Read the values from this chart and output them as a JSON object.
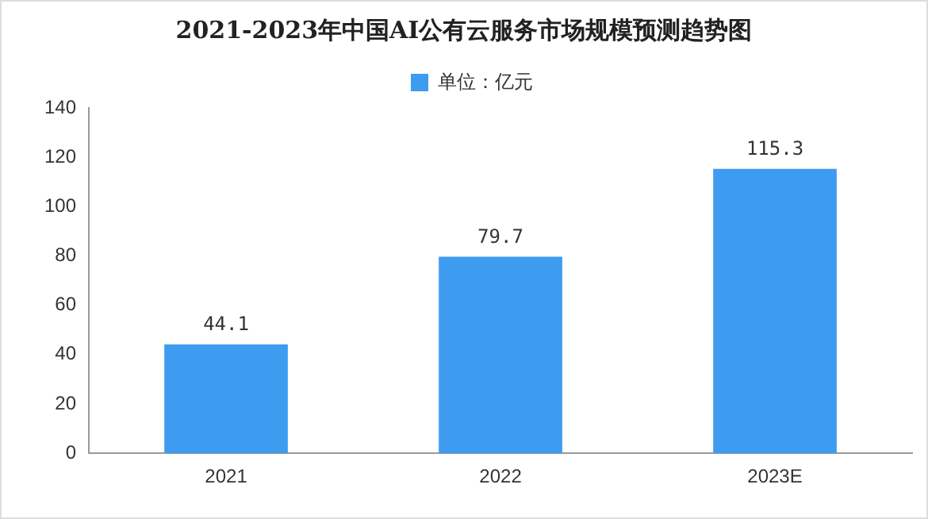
{
  "chart_data": {
    "type": "bar",
    "title": "2021-2023年中国AI公有云服务市场规模预测趋势图",
    "categories": [
      "2021",
      "2022",
      "2023E"
    ],
    "series": [
      {
        "name": "单位：亿元",
        "color": "#3d9cf0",
        "values": [
          44.1,
          79.7,
          115.3
        ]
      }
    ],
    "ylim": [
      0,
      140
    ],
    "yticks": [
      0,
      20,
      40,
      60,
      80,
      100,
      120,
      140
    ],
    "grid": false,
    "legend": "top",
    "data_labels": true
  }
}
